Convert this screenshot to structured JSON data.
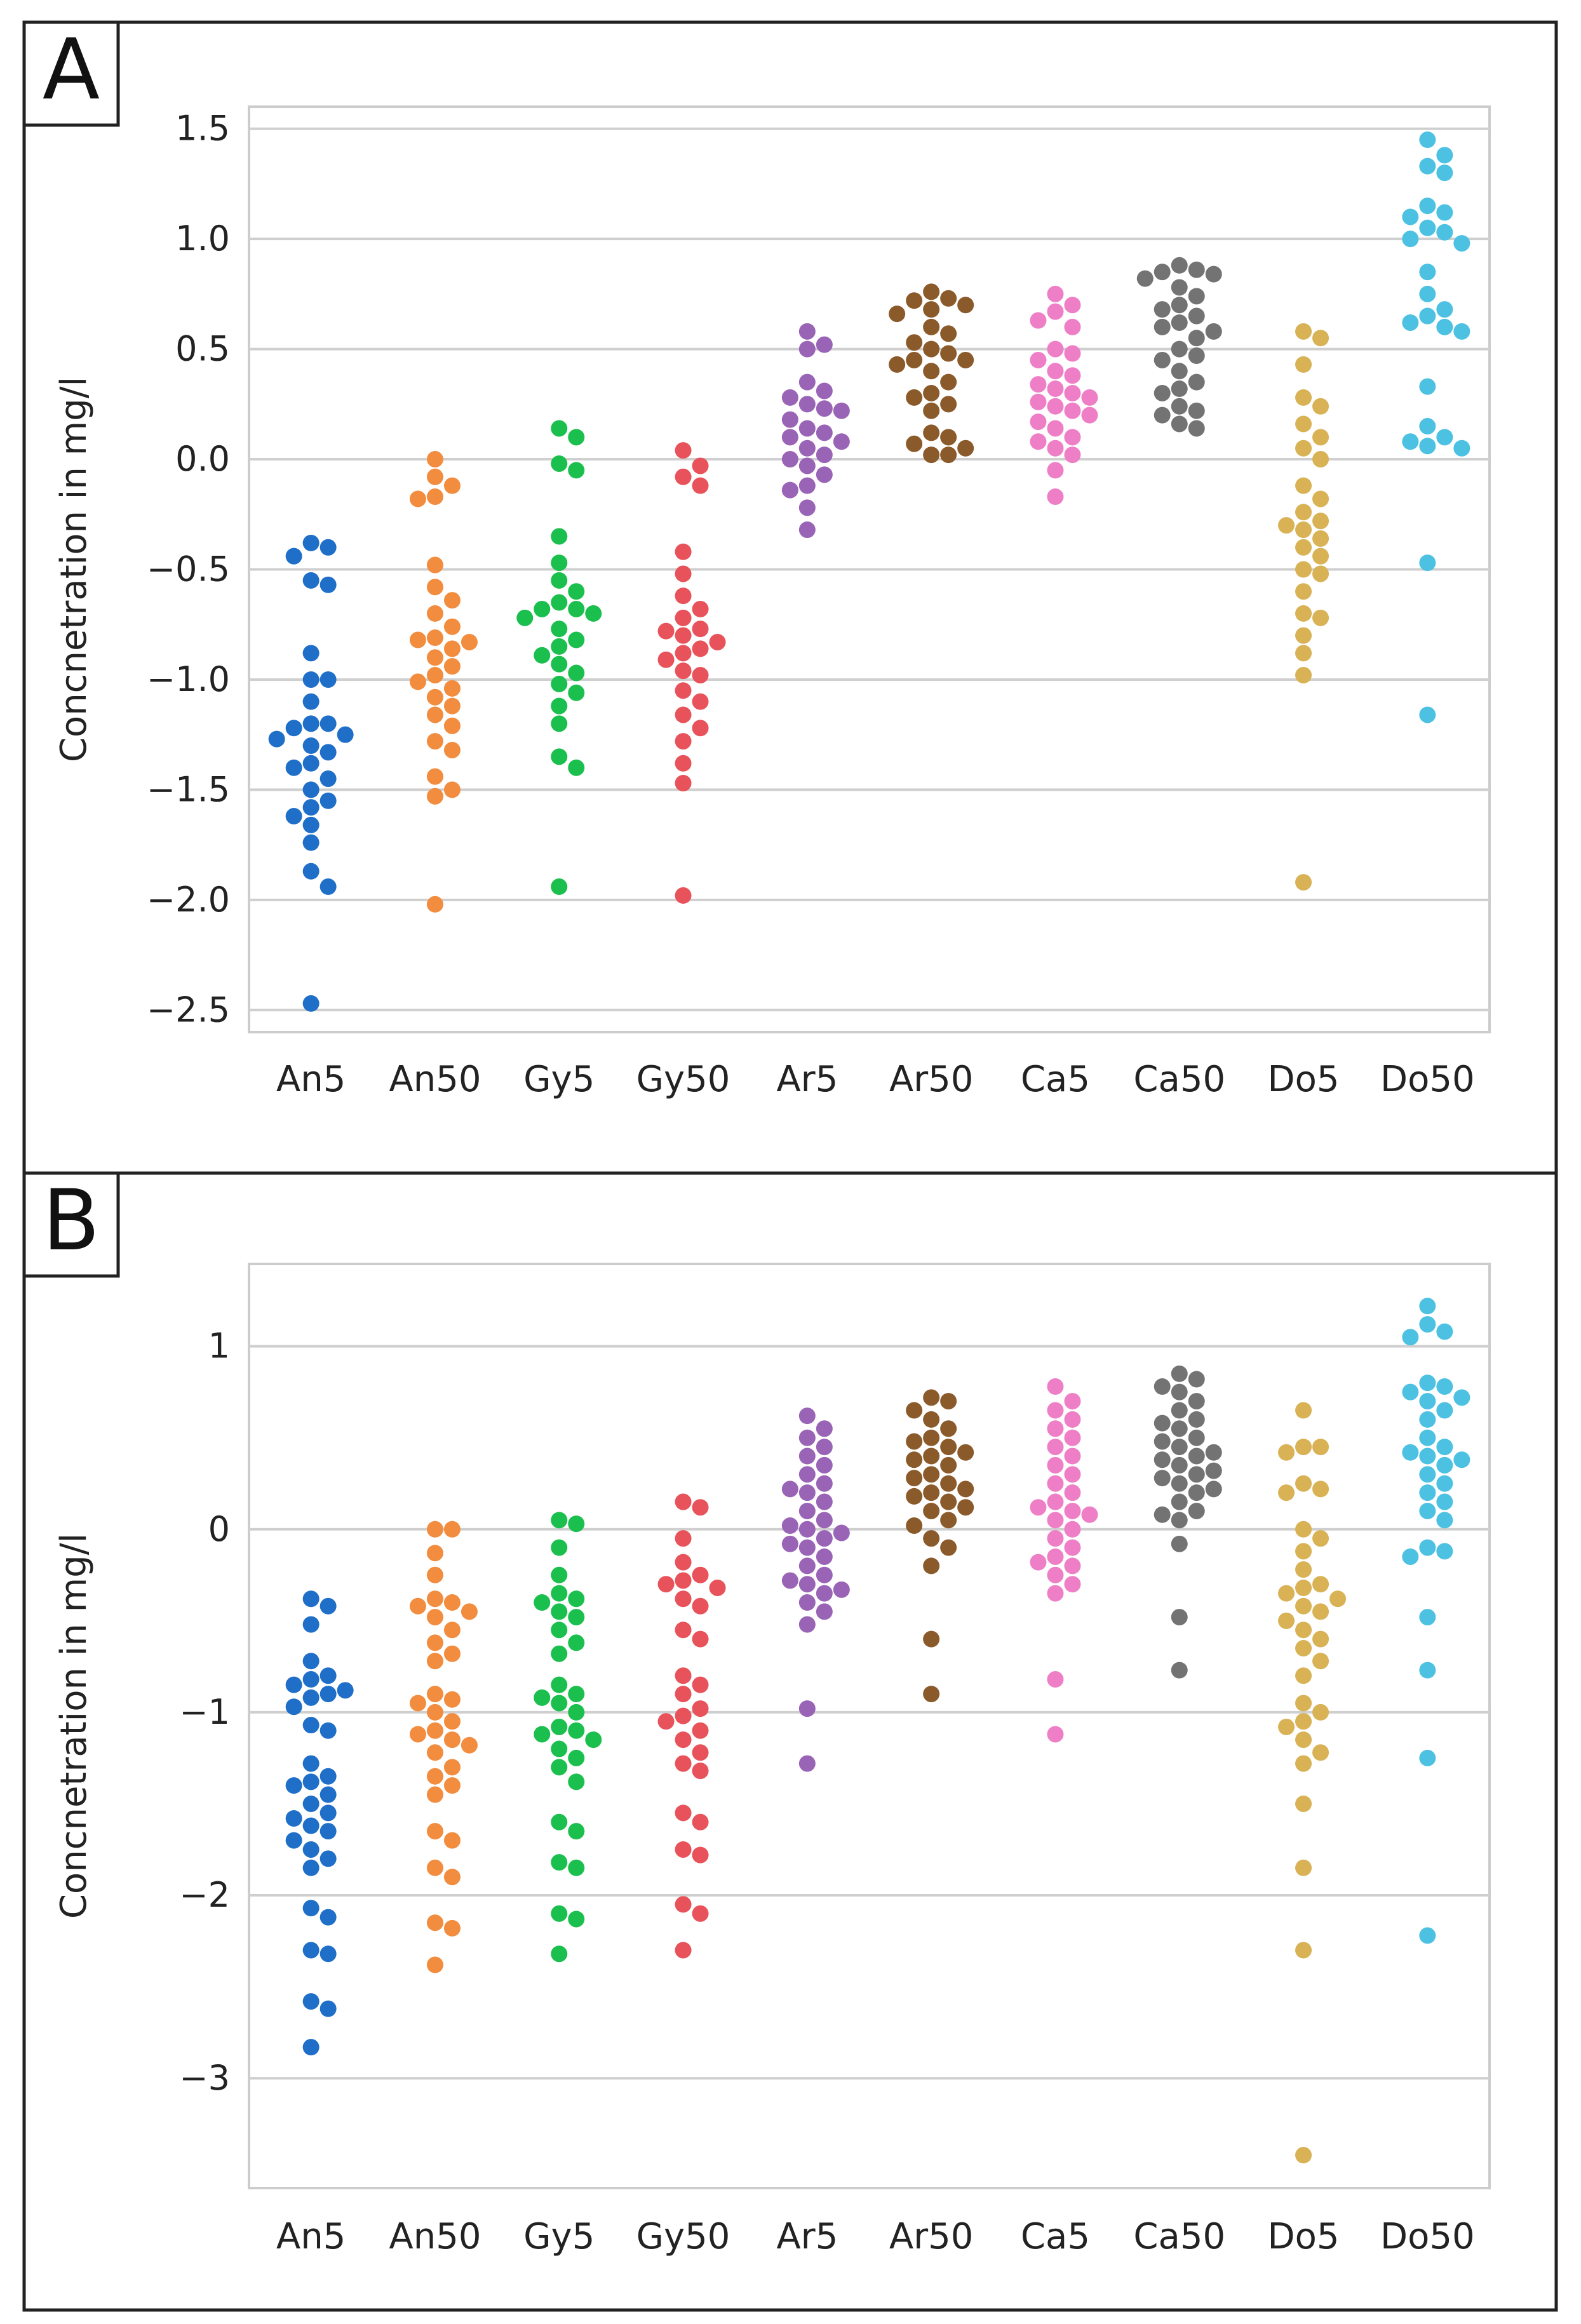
{
  "chart_data": [
    {
      "panel": "A",
      "type": "scatter",
      "style": "swarm",
      "ylabel": "Concnetration in mg/l",
      "xlabel": "",
      "ylim": [
        -2.6,
        1.6
      ],
      "yticks": [
        1.5,
        1.0,
        0.5,
        0.0,
        -0.5,
        -1.0,
        -1.5,
        -2.0,
        -2.5
      ],
      "ytick_labels": [
        "1.5",
        "1.0",
        "0.5",
        "0.0",
        "−0.5",
        "−1.0",
        "−1.5",
        "−2.0",
        "−2.5"
      ],
      "grid": true,
      "categories": [
        "An5",
        "An50",
        "Gy5",
        "Gy50",
        "Ar5",
        "Ar50",
        "Ca5",
        "Ca50",
        "Do5",
        "Do50"
      ],
      "colors": [
        "#1f6fc9",
        "#f28c3e",
        "#1bbf4d",
        "#e8525a",
        "#9a64b6",
        "#8b5a2b",
        "#ee7fc7",
        "#737373",
        "#d8b255",
        "#4cc1e2"
      ],
      "series": [
        {
          "name": "An5",
          "values": [
            -0.38,
            -0.4,
            -0.44,
            -0.55,
            -0.57,
            -0.88,
            -1.0,
            -1.0,
            -1.1,
            -1.2,
            -1.2,
            -1.22,
            -1.25,
            -1.27,
            -1.3,
            -1.33,
            -1.38,
            -1.4,
            -1.45,
            -1.5,
            -1.55,
            -1.58,
            -1.62,
            -1.66,
            -1.74,
            -1.87,
            -1.94,
            -2.47
          ]
        },
        {
          "name": "An50",
          "values": [
            0.0,
            -0.08,
            -0.12,
            -0.17,
            -0.18,
            -0.48,
            -0.58,
            -0.64,
            -0.7,
            -0.76,
            -0.81,
            -0.82,
            -0.83,
            -0.86,
            -0.9,
            -0.94,
            -0.98,
            -1.01,
            -1.04,
            -1.08,
            -1.12,
            -1.16,
            -1.21,
            -1.28,
            -1.32,
            -1.44,
            -1.5,
            -1.53,
            -2.02
          ]
        },
        {
          "name": "Gy5",
          "values": [
            0.14,
            0.1,
            -0.02,
            -0.05,
            -0.35,
            -0.47,
            -0.55,
            -0.6,
            -0.65,
            -0.68,
            -0.68,
            -0.7,
            -0.72,
            -0.77,
            -0.82,
            -0.85,
            -0.89,
            -0.93,
            -0.97,
            -1.02,
            -1.06,
            -1.12,
            -1.2,
            -1.35,
            -1.4,
            -1.94
          ]
        },
        {
          "name": "Gy50",
          "values": [
            0.04,
            -0.03,
            -0.08,
            -0.12,
            -0.42,
            -0.52,
            -0.62,
            -0.68,
            -0.72,
            -0.77,
            -0.78,
            -0.8,
            -0.83,
            -0.86,
            -0.88,
            -0.91,
            -0.96,
            -0.98,
            -1.05,
            -1.1,
            -1.16,
            -1.22,
            -1.28,
            -1.38,
            -1.47,
            -1.98
          ]
        },
        {
          "name": "Ar5",
          "values": [
            0.58,
            0.52,
            0.5,
            0.35,
            0.31,
            0.28,
            0.25,
            0.23,
            0.22,
            0.18,
            0.14,
            0.12,
            0.1,
            0.08,
            0.05,
            0.02,
            0.0,
            -0.03,
            -0.07,
            -0.12,
            -0.14,
            -0.22,
            -0.32
          ]
        },
        {
          "name": "Ar50",
          "values": [
            0.76,
            0.73,
            0.72,
            0.7,
            0.68,
            0.66,
            0.6,
            0.57,
            0.53,
            0.5,
            0.48,
            0.45,
            0.45,
            0.43,
            0.4,
            0.35,
            0.3,
            0.28,
            0.25,
            0.22,
            0.12,
            0.1,
            0.07,
            0.05,
            0.02,
            0.02
          ]
        },
        {
          "name": "Ca5",
          "values": [
            0.75,
            0.7,
            0.67,
            0.63,
            0.6,
            0.5,
            0.48,
            0.45,
            0.4,
            0.38,
            0.34,
            0.32,
            0.3,
            0.28,
            0.26,
            0.24,
            0.22,
            0.2,
            0.17,
            0.14,
            0.1,
            0.08,
            0.05,
            0.02,
            -0.05,
            -0.17
          ]
        },
        {
          "name": "Ca50",
          "values": [
            0.88,
            0.86,
            0.85,
            0.84,
            0.82,
            0.78,
            0.74,
            0.7,
            0.68,
            0.65,
            0.62,
            0.6,
            0.58,
            0.55,
            0.5,
            0.47,
            0.45,
            0.4,
            0.35,
            0.32,
            0.3,
            0.24,
            0.22,
            0.2,
            0.16,
            0.14
          ]
        },
        {
          "name": "Do5",
          "values": [
            0.58,
            0.55,
            0.43,
            0.28,
            0.24,
            0.16,
            0.1,
            0.05,
            0.0,
            -0.12,
            -0.18,
            -0.24,
            -0.28,
            -0.3,
            -0.32,
            -0.36,
            -0.4,
            -0.44,
            -0.5,
            -0.52,
            -0.6,
            -0.7,
            -0.72,
            -0.8,
            -0.88,
            -0.98,
            -1.92
          ]
        },
        {
          "name": "Do50",
          "values": [
            1.45,
            1.38,
            1.33,
            1.3,
            1.15,
            1.12,
            1.1,
            1.05,
            1.03,
            1.0,
            0.98,
            0.85,
            0.75,
            0.68,
            0.65,
            0.62,
            0.6,
            0.58,
            0.33,
            0.15,
            0.1,
            0.08,
            0.06,
            0.05,
            -0.47,
            -1.16
          ]
        }
      ]
    },
    {
      "panel": "B",
      "type": "scatter",
      "style": "swarm",
      "ylabel": "Concnetration in mg/l",
      "xlabel": "",
      "ylim": [
        -3.6,
        1.45
      ],
      "yticks": [
        1,
        0,
        -1,
        -2,
        -3
      ],
      "ytick_labels": [
        "1",
        "0",
        "−1",
        "−2",
        "−3"
      ],
      "grid": true,
      "categories": [
        "An5",
        "An50",
        "Gy5",
        "Gy50",
        "Ar5",
        "Ar50",
        "Ca5",
        "Ca50",
        "Do5",
        "Do50"
      ],
      "colors": [
        "#1f6fc9",
        "#f28c3e",
        "#1bbf4d",
        "#e8525a",
        "#9a64b6",
        "#8b5a2b",
        "#ee7fc7",
        "#737373",
        "#d8b255",
        "#4cc1e2"
      ],
      "series": [
        {
          "name": "An5",
          "values": [
            -0.38,
            -0.42,
            -0.52,
            -0.72,
            -0.8,
            -0.82,
            -0.85,
            -0.88,
            -0.9,
            -0.92,
            -0.97,
            -1.07,
            -1.1,
            -1.28,
            -1.35,
            -1.38,
            -1.4,
            -1.45,
            -1.5,
            -1.55,
            -1.58,
            -1.62,
            -1.65,
            -1.7,
            -1.75,
            -1.8,
            -1.85,
            -2.07,
            -2.12,
            -2.3,
            -2.32,
            -2.58,
            -2.62,
            -2.83
          ]
        },
        {
          "name": "An50",
          "values": [
            0.0,
            0.0,
            -0.13,
            -0.25,
            -0.38,
            -0.4,
            -0.42,
            -0.45,
            -0.48,
            -0.55,
            -0.62,
            -0.68,
            -0.72,
            -0.9,
            -0.93,
            -0.95,
            -1.0,
            -1.05,
            -1.1,
            -1.12,
            -1.15,
            -1.18,
            -1.22,
            -1.3,
            -1.35,
            -1.4,
            -1.45,
            -1.65,
            -1.7,
            -1.85,
            -1.9,
            -2.15,
            -2.18,
            -2.38
          ]
        },
        {
          "name": "Gy5",
          "values": [
            0.05,
            0.03,
            -0.1,
            -0.25,
            -0.35,
            -0.38,
            -0.4,
            -0.45,
            -0.48,
            -0.55,
            -0.62,
            -0.68,
            -0.85,
            -0.9,
            -0.92,
            -0.95,
            -1.0,
            -1.08,
            -1.1,
            -1.12,
            -1.15,
            -1.2,
            -1.25,
            -1.3,
            -1.38,
            -1.6,
            -1.65,
            -1.82,
            -1.85,
            -2.1,
            -2.13,
            -2.32
          ]
        },
        {
          "name": "Gy50",
          "values": [
            0.15,
            0.12,
            -0.05,
            -0.18,
            -0.25,
            -0.28,
            -0.3,
            -0.32,
            -0.38,
            -0.42,
            -0.55,
            -0.6,
            -0.8,
            -0.85,
            -0.9,
            -0.98,
            -1.02,
            -1.05,
            -1.1,
            -1.15,
            -1.22,
            -1.28,
            -1.32,
            -1.55,
            -1.6,
            -1.75,
            -1.78,
            -2.05,
            -2.1,
            -2.3
          ]
        },
        {
          "name": "Ar5",
          "values": [
            0.62,
            0.55,
            0.5,
            0.45,
            0.4,
            0.35,
            0.3,
            0.25,
            0.22,
            0.2,
            0.15,
            0.1,
            0.05,
            0.02,
            0.0,
            -0.02,
            -0.05,
            -0.08,
            -0.1,
            -0.15,
            -0.2,
            -0.25,
            -0.28,
            -0.3,
            -0.33,
            -0.35,
            -0.4,
            -0.45,
            -0.52,
            -0.98,
            -1.28
          ]
        },
        {
          "name": "Ar50",
          "values": [
            0.72,
            0.7,
            0.65,
            0.6,
            0.55,
            0.5,
            0.48,
            0.45,
            0.42,
            0.4,
            0.38,
            0.35,
            0.3,
            0.28,
            0.25,
            0.22,
            0.2,
            0.18,
            0.15,
            0.12,
            0.1,
            0.05,
            0.02,
            -0.05,
            -0.1,
            -0.2,
            -0.6,
            -0.9
          ]
        },
        {
          "name": "Ca5",
          "values": [
            0.78,
            0.7,
            0.65,
            0.6,
            0.55,
            0.5,
            0.45,
            0.4,
            0.35,
            0.3,
            0.25,
            0.2,
            0.15,
            0.12,
            0.1,
            0.08,
            0.05,
            0.0,
            -0.05,
            -0.1,
            -0.15,
            -0.18,
            -0.2,
            -0.25,
            -0.3,
            -0.35,
            -0.82,
            -1.12
          ]
        },
        {
          "name": "Ca50",
          "values": [
            0.85,
            0.82,
            0.78,
            0.75,
            0.7,
            0.65,
            0.6,
            0.58,
            0.55,
            0.5,
            0.48,
            0.45,
            0.42,
            0.4,
            0.38,
            0.35,
            0.32,
            0.3,
            0.28,
            0.25,
            0.22,
            0.2,
            0.15,
            0.1,
            0.08,
            0.05,
            -0.08,
            -0.48,
            -0.77
          ]
        },
        {
          "name": "Do5",
          "values": [
            0.65,
            0.45,
            0.45,
            0.42,
            0.25,
            0.22,
            0.2,
            0.0,
            -0.05,
            -0.12,
            -0.22,
            -0.3,
            -0.32,
            -0.35,
            -0.38,
            -0.42,
            -0.45,
            -0.5,
            -0.55,
            -0.6,
            -0.65,
            -0.72,
            -0.8,
            -0.95,
            -1.0,
            -1.05,
            -1.08,
            -1.15,
            -1.22,
            -1.28,
            -1.5,
            -1.85,
            -2.3,
            -3.42
          ]
        },
        {
          "name": "Do50",
          "values": [
            1.22,
            1.12,
            1.08,
            1.05,
            0.8,
            0.78,
            0.75,
            0.72,
            0.7,
            0.65,
            0.6,
            0.5,
            0.45,
            0.42,
            0.4,
            0.38,
            0.35,
            0.3,
            0.25,
            0.2,
            0.15,
            0.1,
            0.05,
            -0.1,
            -0.12,
            -0.15,
            -0.48,
            -0.77,
            -1.25,
            -2.22
          ]
        }
      ]
    }
  ],
  "panels": {
    "a": {
      "letter": "A"
    },
    "b": {
      "letter": "B"
    }
  }
}
